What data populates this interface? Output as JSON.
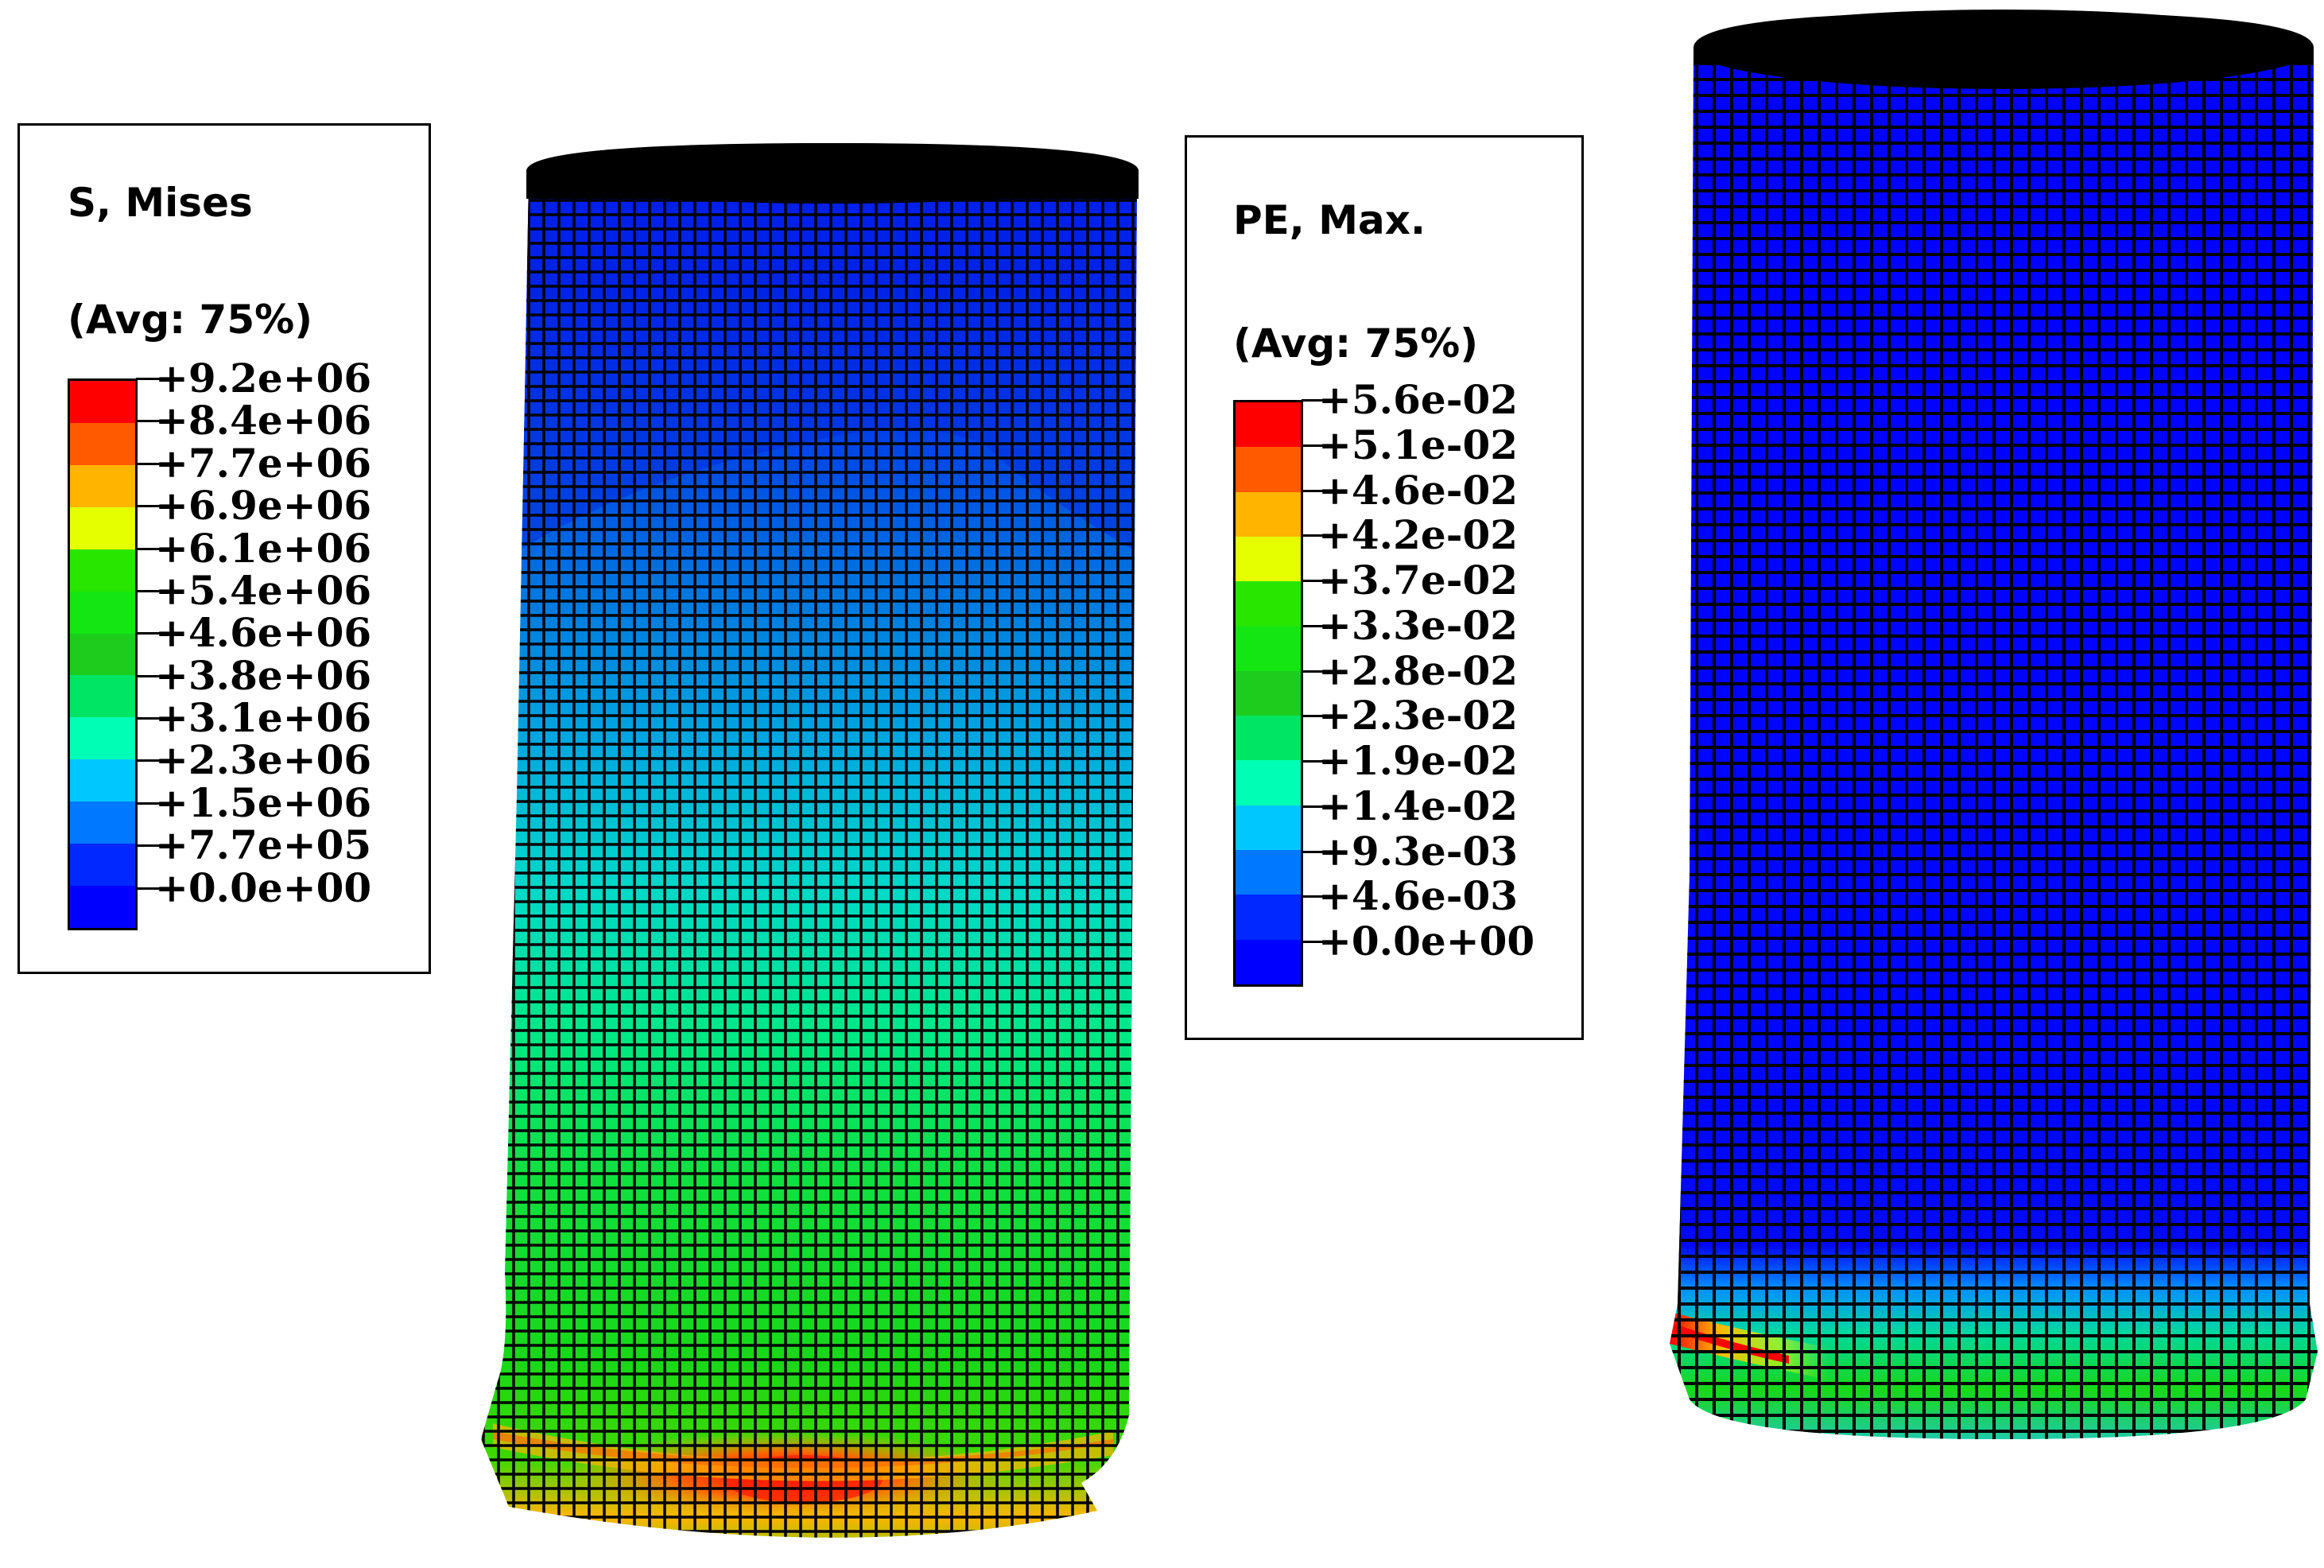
{
  "legends": [
    {
      "title": "S, Mises",
      "subtitle": "(Avg: 75%)",
      "labels": [
        "+9.2e+06",
        "+8.4e+06",
        "+7.7e+06",
        "+6.9e+06",
        "+6.1e+06",
        "+5.4e+06",
        "+4.6e+06",
        "+3.8e+06",
        "+3.1e+06",
        "+2.3e+06",
        "+1.5e+06",
        "+7.7e+05",
        "+0.0e+00"
      ]
    },
    {
      "title": "PE, Max.",
      "subtitle": "(Avg: 75%)",
      "labels": [
        "+5.6e-02",
        "+5.1e-02",
        "+4.6e-02",
        "+4.2e-02",
        "+3.7e-02",
        "+3.3e-02",
        "+2.8e-02",
        "+2.3e-02",
        "+1.9e-02",
        "+1.4e-02",
        "+9.3e-03",
        "+4.6e-03",
        "+0.0e+00"
      ]
    }
  ],
  "colormap": [
    "#ff0000",
    "#ff5a00",
    "#ffb400",
    "#e6ff00",
    "#28e600",
    "#14e614",
    "#1ecc1e",
    "#00e664",
    "#00ffb4",
    "#00c8ff",
    "#0078ff",
    "#0028ff",
    "#0000ff"
  ],
  "models": [
    {
      "name": "Mises stress contour",
      "peak_band": "red at base"
    },
    {
      "name": "Max plastic strain contour",
      "peak_band": "red at base edge"
    }
  ]
}
